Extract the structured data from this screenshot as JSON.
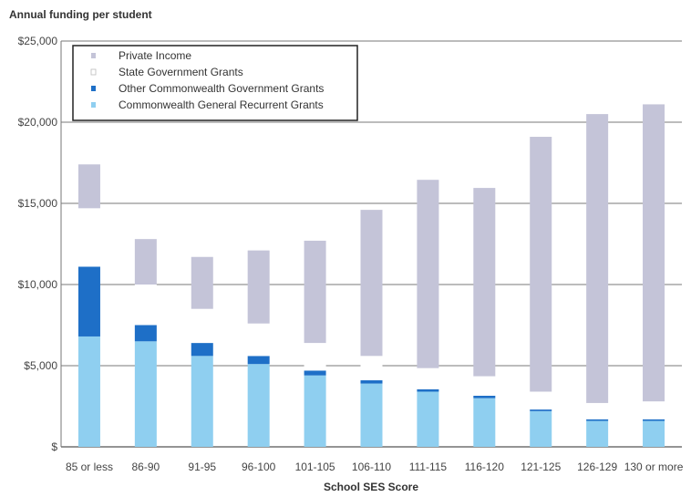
{
  "chart_data": {
    "type": "bar",
    "stacked": true,
    "title": "Annual funding per student",
    "xlabel": "School SES Score",
    "ylabel": "",
    "ylim": [
      0,
      25000
    ],
    "yticks": [
      "$",
      "$5,000",
      "$10,000",
      "$15,000",
      "$20,000",
      "$25,000"
    ],
    "grid": true,
    "legend_position": "top-left",
    "categories": [
      "85 or less",
      "86-90",
      "91-95",
      "96-100",
      "101-105",
      "106-110",
      "111-115",
      "116-120",
      "121-125",
      "126-129",
      "130 or more"
    ],
    "legend_order": [
      3,
      2,
      1,
      0
    ],
    "series": [
      {
        "name": "Commonwealth General Recurrent Grants",
        "color": "#8fcff0",
        "values": [
          6800,
          6500,
          5600,
          5100,
          4400,
          3900,
          3400,
          3000,
          2200,
          1600,
          1600
        ]
      },
      {
        "name": "Other Commonwealth Government Grants",
        "color": "#1e6fc7",
        "values": [
          4300,
          1000,
          800,
          500,
          300,
          200,
          150,
          150,
          100,
          100,
          100
        ]
      },
      {
        "name": "State Government Grants",
        "color": "#ffffff",
        "values": [
          3600,
          2500,
          2100,
          2000,
          1700,
          1500,
          1300,
          1200,
          1100,
          1000,
          1100
        ]
      },
      {
        "name": "Private Income",
        "color": "#c4c4d8",
        "values": [
          2700,
          2800,
          3200,
          4500,
          6300,
          9000,
          11600,
          11600,
          15700,
          17800,
          18300
        ]
      }
    ]
  }
}
